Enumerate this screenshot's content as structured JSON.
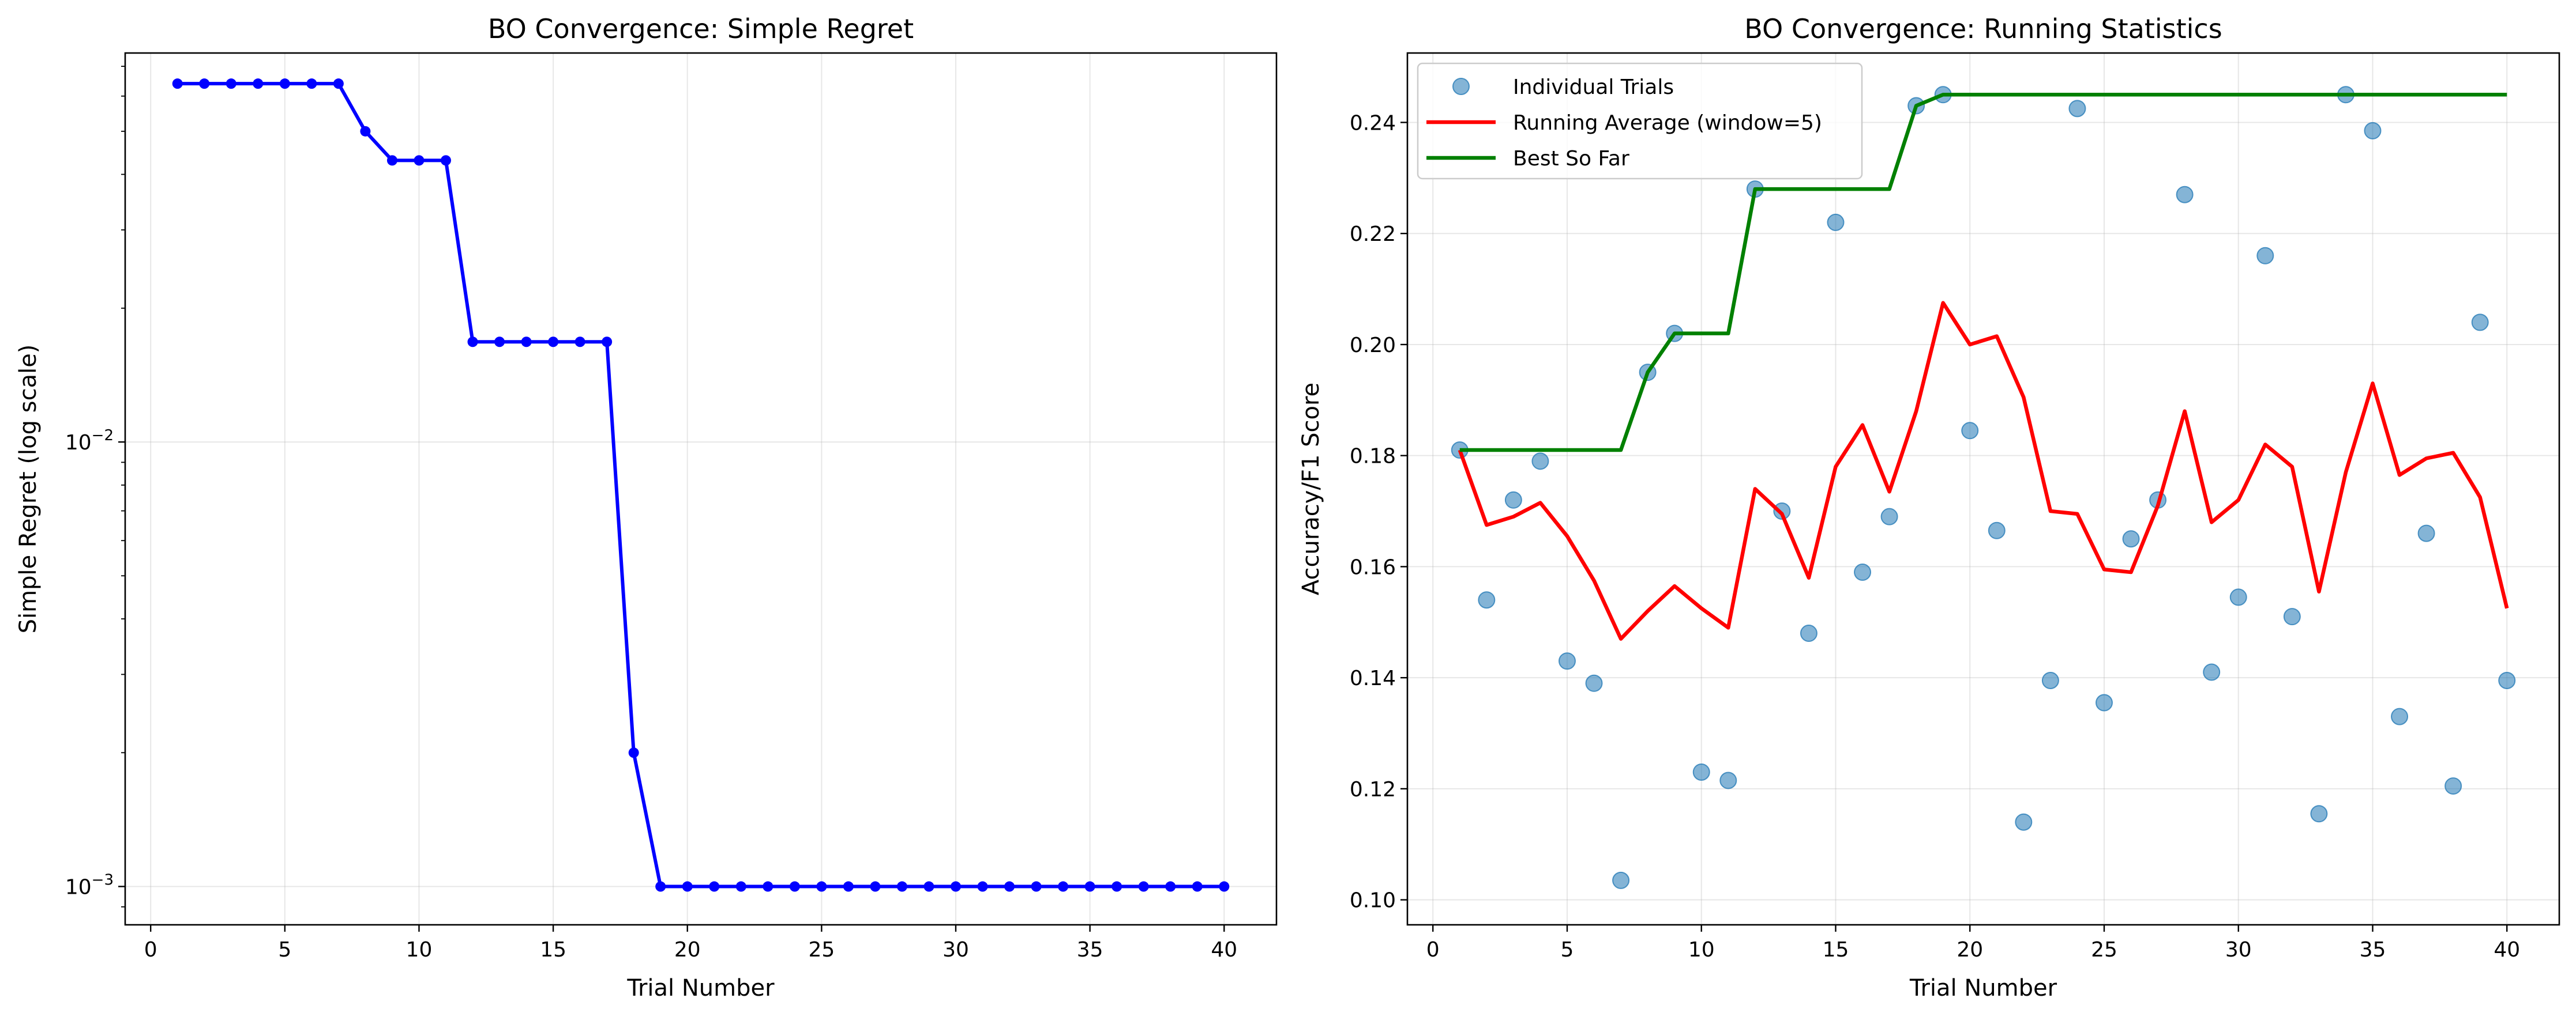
{
  "chart_data": [
    {
      "type": "line",
      "title": "BO Convergence: Simple Regret",
      "xlabel": "Trial Number",
      "ylabel": "Simple Regret (log scale)",
      "yscale": "log",
      "xlim": [
        -0.95,
        41.95
      ],
      "ylim": [
        0.00082,
        0.075
      ],
      "grid": true,
      "x_ticks": [
        0,
        5,
        10,
        15,
        20,
        25,
        30,
        35,
        40
      ],
      "x_tick_labels": [
        "0",
        "5",
        "10",
        "15",
        "20",
        "25",
        "30",
        "35",
        "40"
      ],
      "y_major_ticks": [
        0.001,
        0.01
      ],
      "y_major_tick_labels": [
        "10",
        "10"
      ],
      "y_major_tick_exponents": [
        "−3",
        "−2"
      ],
      "series": [
        {
          "color": "#0000ff",
          "marker": "circle",
          "x": [
            1,
            2,
            3,
            4,
            5,
            6,
            7,
            8,
            9,
            10,
            11,
            12,
            13,
            14,
            15,
            16,
            17,
            18,
            19,
            20,
            21,
            22,
            23,
            24,
            25,
            26,
            27,
            28,
            29,
            30,
            31,
            32,
            33,
            34,
            35,
            36,
            37,
            38,
            39,
            40
          ],
          "values": [
            0.064,
            0.064,
            0.064,
            0.064,
            0.064,
            0.064,
            0.064,
            0.05,
            0.043,
            0.043,
            0.043,
            0.0168,
            0.0168,
            0.0168,
            0.0168,
            0.0168,
            0.0168,
            0.002,
            0.001,
            0.001,
            0.001,
            0.001,
            0.001,
            0.001,
            0.001,
            0.001,
            0.001,
            0.001,
            0.001,
            0.001,
            0.001,
            0.001,
            0.001,
            0.001,
            0.001,
            0.001,
            0.001,
            0.001,
            0.001,
            0.001
          ]
        }
      ]
    },
    {
      "type": "line",
      "title": "BO Convergence: Running Statistics",
      "xlabel": "Trial Number",
      "ylabel": "Accuracy/F1 Score",
      "xlim": [
        -0.95,
        41.95
      ],
      "ylim": [
        0.0955,
        0.2525
      ],
      "grid": true,
      "legend_position": "top-left",
      "x_ticks": [
        0,
        5,
        10,
        15,
        20,
        25,
        30,
        35,
        40
      ],
      "x_tick_labels": [
        "0",
        "5",
        "10",
        "15",
        "20",
        "25",
        "30",
        "35",
        "40"
      ],
      "y_ticks": [
        0.1,
        0.12,
        0.14,
        0.16,
        0.18,
        0.2,
        0.22,
        0.24
      ],
      "y_tick_labels": [
        "0.10",
        "0.12",
        "0.14",
        "0.16",
        "0.18",
        "0.20",
        "0.22",
        "0.24"
      ],
      "x": [
        1,
        2,
        3,
        4,
        5,
        6,
        7,
        8,
        9,
        10,
        11,
        12,
        13,
        14,
        15,
        16,
        17,
        18,
        19,
        20,
        21,
        22,
        23,
        24,
        25,
        26,
        27,
        28,
        29,
        30,
        31,
        32,
        33,
        34,
        35,
        36,
        37,
        38,
        39,
        40
      ],
      "series": [
        {
          "name": "Individual Trials",
          "kind": "scatter",
          "color": "#1f77b4",
          "values": [
            0.181,
            0.154,
            0.172,
            0.179,
            0.143,
            0.139,
            0.1035,
            0.195,
            0.202,
            0.123,
            0.1215,
            0.228,
            0.17,
            0.148,
            0.222,
            0.159,
            0.169,
            0.243,
            0.245,
            0.1845,
            0.1665,
            0.114,
            0.1395,
            0.2425,
            0.1355,
            0.165,
            0.172,
            0.227,
            0.141,
            0.1545,
            0.216,
            0.151,
            0.1155,
            0.245,
            0.2385,
            0.133,
            0.166,
            0.1205,
            0.204,
            0.1395
          ]
        },
        {
          "name": "Running Average (window=5)",
          "kind": "line",
          "color": "#ff0000",
          "values": [
            0.181,
            0.1675,
            0.169,
            0.1715,
            0.1655,
            0.1575,
            0.147,
            0.152,
            0.1565,
            0.1525,
            0.149,
            0.174,
            0.1695,
            0.158,
            0.178,
            0.1855,
            0.1735,
            0.188,
            0.2075,
            0.2,
            0.2015,
            0.1905,
            0.17,
            0.1695,
            0.1595,
            0.159,
            0.171,
            0.188,
            0.168,
            0.172,
            0.182,
            0.178,
            0.1555,
            0.177,
            0.193,
            0.1765,
            0.1795,
            0.1805,
            0.1725,
            0.1525
          ]
        },
        {
          "name": "Best So Far",
          "kind": "step",
          "color": "#008000",
          "values": [
            0.181,
            0.181,
            0.181,
            0.181,
            0.181,
            0.181,
            0.181,
            0.195,
            0.202,
            0.202,
            0.202,
            0.228,
            0.228,
            0.228,
            0.228,
            0.228,
            0.228,
            0.243,
            0.245,
            0.245,
            0.245,
            0.245,
            0.245,
            0.245,
            0.245,
            0.245,
            0.245,
            0.245,
            0.245,
            0.245,
            0.245,
            0.245,
            0.245,
            0.245,
            0.245,
            0.245,
            0.245,
            0.245,
            0.245,
            0.245
          ]
        }
      ]
    }
  ]
}
